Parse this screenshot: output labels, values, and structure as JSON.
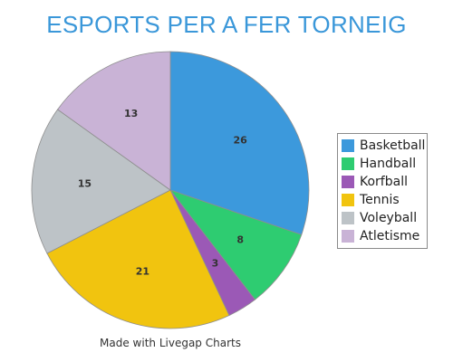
{
  "chart_data": {
    "type": "pie",
    "title": "ESPORTS PER A FER TORNEIG",
    "categories": [
      "Basketball",
      "Handball",
      "Korfball",
      "Tennis",
      "Voleyball",
      "Atletisme"
    ],
    "values": [
      26,
      8,
      3,
      21,
      15,
      13
    ],
    "colors": [
      "#3c99dc",
      "#2ecc71",
      "#9b59b6",
      "#f1c40f",
      "#bdc3c7",
      "#c9b3d6"
    ],
    "legend_position": "right",
    "start_angle_deg": 0,
    "direction": "clockwise"
  },
  "footer": {
    "credit": "Made with Livegap Charts"
  }
}
